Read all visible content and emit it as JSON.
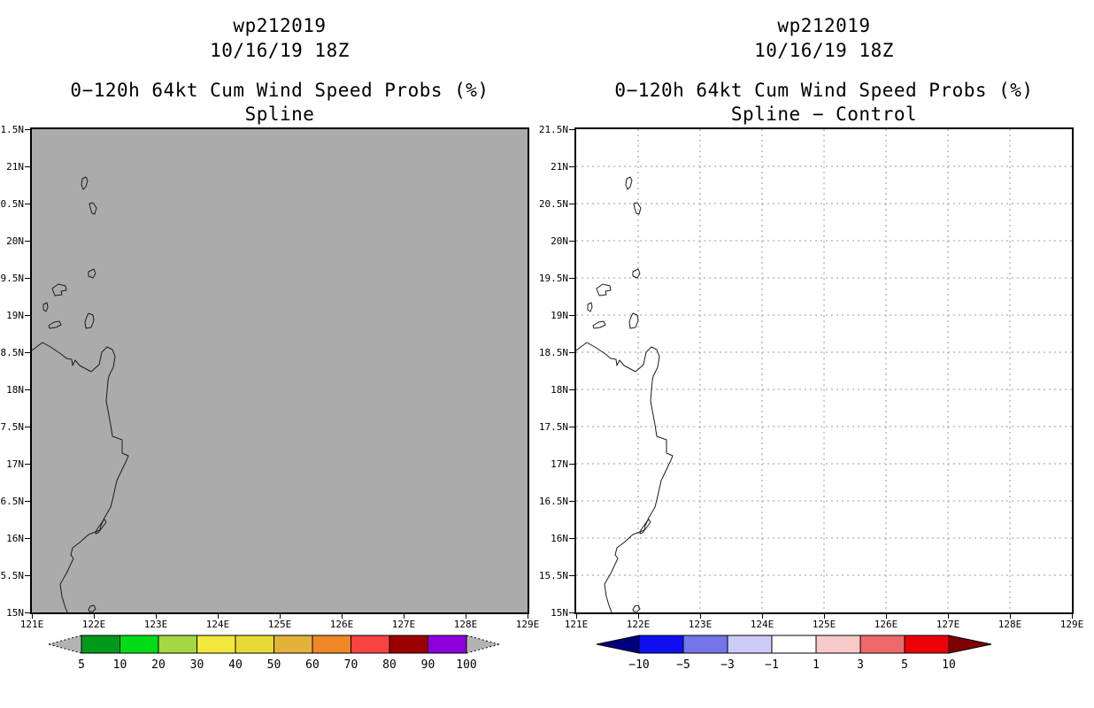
{
  "panels": [
    {
      "id": "spline",
      "title1": "wp212019",
      "title2": "10/16/19 18Z",
      "subtitle1": "0−120h 64kt Cum Wind Speed Probs (%)",
      "subtitle2": "Spline",
      "map_bg": "#ababab",
      "show_grid": false,
      "colorbar": {
        "labels": [
          "5",
          "10",
          "20",
          "30",
          "40",
          "50",
          "60",
          "70",
          "80",
          "90",
          "100"
        ],
        "cell_colors": [
          "#00991c",
          "#00dd17",
          "#a5d943",
          "#f2e73c",
          "#e7da36",
          "#e3b238",
          "#ef8727",
          "#f94343",
          "#9b0000",
          "#8d00dd"
        ],
        "arrow_left": "#b3b3b3",
        "arrow_right": "#b3b3b3",
        "arrow_dashed": true
      }
    },
    {
      "id": "spline-minus-control",
      "title1": "wp212019",
      "title2": "10/16/19 18Z",
      "subtitle1": "0−120h 64kt Cum Wind Speed Probs (%)",
      "subtitle2": "Spline − Control",
      "map_bg": "#ffffff",
      "show_grid": true,
      "colorbar": {
        "labels": [
          "−10",
          "−5",
          "−3",
          "−1",
          "1",
          "3",
          "5",
          "10"
        ],
        "cell_colors": [
          "#0f0ff2",
          "#7474eb",
          "#cdccf8",
          "#ffffff",
          "#f8caca",
          "#ee6a6a",
          "#ee0008"
        ],
        "arrow_left": "#00007f",
        "arrow_right": "#7f0000",
        "arrow_dashed": false
      }
    }
  ],
  "axes": {
    "lat_labels": [
      "21.5N",
      "21N",
      "20.5N",
      "20N",
      "19.5N",
      "19N",
      "18.5N",
      "18N",
      "17.5N",
      "17N",
      "16.5N",
      "16N",
      "15.5N",
      "15N"
    ],
    "lon_labels": [
      "121E",
      "122E",
      "123E",
      "124E",
      "125E",
      "126E",
      "127E",
      "128E",
      "129E"
    ]
  },
  "chart_data": [
    {
      "type": "heatmap",
      "title": "wp212019 10/16/19 18Z — 0−120h 64kt Cum Wind Speed Probs (%) — Spline",
      "lon_range": [
        121,
        129
      ],
      "lat_range": [
        15,
        21.5
      ],
      "lon_ticks": [
        121,
        122,
        123,
        124,
        125,
        126,
        127,
        128,
        129
      ],
      "lat_ticks": [
        15,
        15.5,
        16,
        16.5,
        17,
        17.5,
        18,
        18.5,
        19,
        19.5,
        20,
        20.5,
        21,
        21.5
      ],
      "colorbar_levels": [
        5,
        10,
        20,
        30,
        40,
        50,
        60,
        70,
        80,
        90,
        100
      ],
      "field": "uniform, below lowest contour level (shown solid gray)",
      "grid": false,
      "legend_position": "bottom"
    },
    {
      "type": "heatmap",
      "title": "wp212019 10/16/19 18Z — 0−120h 64kt Cum Wind Speed Probs (%) — Spline − Control",
      "lon_range": [
        121,
        129
      ],
      "lat_range": [
        15,
        21.5
      ],
      "lon_ticks": [
        121,
        122,
        123,
        124,
        125,
        126,
        127,
        128,
        129
      ],
      "lat_ticks": [
        15,
        15.5,
        16,
        16.5,
        17,
        17.5,
        18,
        18.5,
        19,
        19.5,
        20,
        20.5,
        21,
        21.5
      ],
      "colorbar_levels": [
        -10,
        -5,
        -3,
        -1,
        1,
        3,
        5,
        10
      ],
      "field": "uniform, within −1 to 1 (shown white)",
      "grid": true,
      "legend_position": "bottom"
    }
  ]
}
